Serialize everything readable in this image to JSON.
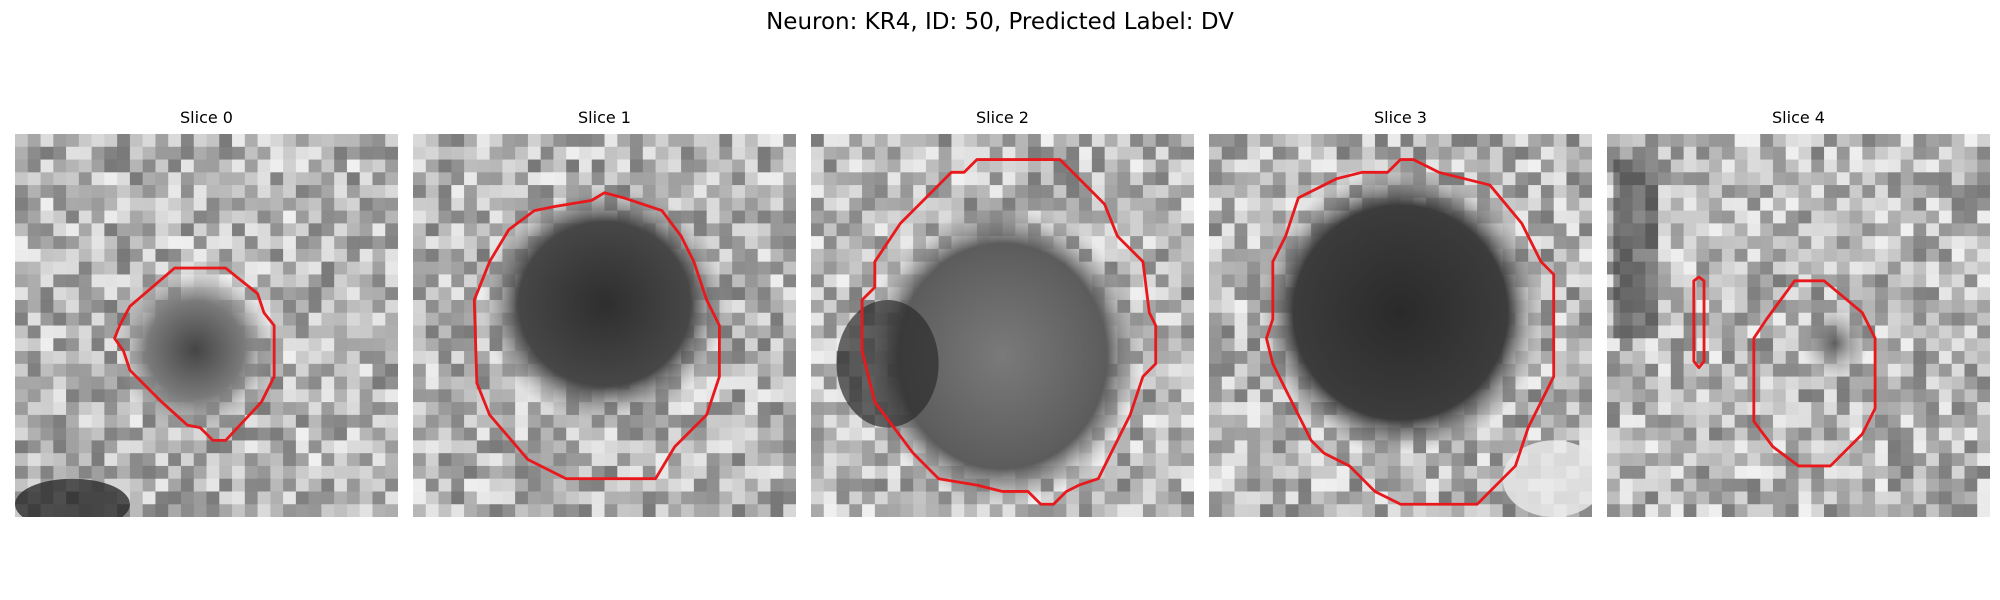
{
  "figure": {
    "title": "Neuron: KR4, ID: 50, Predicted Label: DV"
  },
  "colors": {
    "contour": "#e8191c",
    "background": "#ffffff"
  },
  "panels": [
    {
      "label": "Slice 0"
    },
    {
      "label": "Slice 1"
    },
    {
      "label": "Slice 2"
    },
    {
      "label": "Slice 3"
    },
    {
      "label": "Slice 4"
    }
  ]
}
